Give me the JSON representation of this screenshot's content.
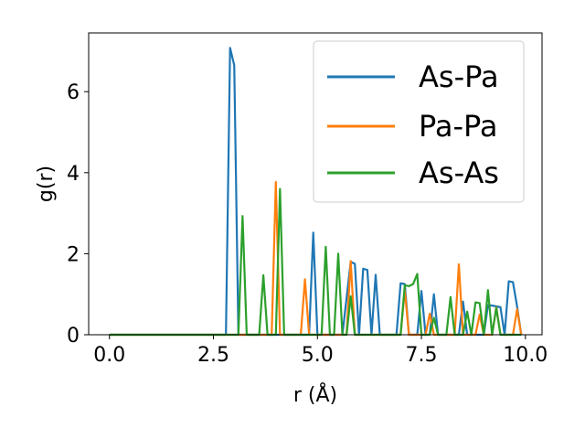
{
  "chart_data": {
    "type": "line",
    "title": "",
    "xlabel": "r (Å)",
    "ylabel": "g(r)",
    "xlim": [
      -0.5,
      10.4
    ],
    "ylim": [
      0,
      7.45
    ],
    "xticks": [
      0.0,
      2.5,
      5.0,
      7.5,
      10.0
    ],
    "xtick_labels": [
      "0.0",
      "2.5",
      "5.0",
      "7.5",
      "10.0"
    ],
    "yticks": [
      0,
      2,
      4,
      6
    ],
    "ytick_labels": [
      "0",
      "2",
      "4",
      "6"
    ],
    "grid": false,
    "legend_position": "top-right",
    "series": [
      {
        "name": "As-Pa",
        "color": "#1f77b4",
        "points": [
          [
            0.0,
            0
          ],
          [
            2.8,
            0
          ],
          [
            2.9,
            7.08
          ],
          [
            3.0,
            6.65
          ],
          [
            3.1,
            0
          ],
          [
            4.8,
            0
          ],
          [
            4.9,
            2.52
          ],
          [
            5.0,
            0
          ],
          [
            5.6,
            0
          ],
          [
            5.8,
            1.8
          ],
          [
            5.9,
            1.75
          ],
          [
            6.0,
            0
          ],
          [
            6.1,
            1.63
          ],
          [
            6.2,
            1.6
          ],
          [
            6.3,
            0
          ],
          [
            6.4,
            1.48
          ],
          [
            6.5,
            0
          ],
          [
            6.9,
            0
          ],
          [
            7.0,
            1.27
          ],
          [
            7.1,
            1.25
          ],
          [
            7.2,
            0
          ],
          [
            7.4,
            0
          ],
          [
            7.5,
            1.08
          ],
          [
            7.6,
            0
          ],
          [
            7.7,
            0
          ],
          [
            7.8,
            1.0
          ],
          [
            7.9,
            0
          ],
          [
            8.4,
            0
          ],
          [
            8.5,
            0.82
          ],
          [
            8.6,
            0
          ],
          [
            9.0,
            0
          ],
          [
            9.1,
            0.73
          ],
          [
            9.2,
            0.72
          ],
          [
            9.3,
            0.7
          ],
          [
            9.4,
            0.68
          ],
          [
            9.5,
            0
          ],
          [
            9.6,
            1.32
          ],
          [
            9.7,
            1.3
          ],
          [
            9.8,
            0.7
          ],
          [
            9.9,
            0
          ]
        ]
      },
      {
        "name": "Pa-Pa",
        "color": "#ff7f0e",
        "points": [
          [
            0.0,
            0
          ],
          [
            3.9,
            0
          ],
          [
            4.0,
            3.77
          ],
          [
            4.1,
            0
          ],
          [
            4.6,
            0
          ],
          [
            4.7,
            1.37
          ],
          [
            4.8,
            0
          ],
          [
            5.7,
            0
          ],
          [
            5.8,
            1.82
          ],
          [
            5.9,
            0
          ],
          [
            7.0,
            0
          ],
          [
            7.1,
            1.1
          ],
          [
            7.2,
            0
          ],
          [
            7.6,
            0
          ],
          [
            7.7,
            0.52
          ],
          [
            7.8,
            0
          ],
          [
            8.3,
            0
          ],
          [
            8.4,
            1.74
          ],
          [
            8.5,
            0
          ],
          [
            8.8,
            0
          ],
          [
            8.9,
            0.5
          ],
          [
            9.0,
            0
          ],
          [
            9.2,
            0
          ],
          [
            9.3,
            0.68
          ],
          [
            9.4,
            0
          ],
          [
            9.7,
            0
          ],
          [
            9.8,
            0.63
          ],
          [
            9.9,
            0
          ]
        ]
      },
      {
        "name": "As-As",
        "color": "#2ca02c",
        "points": [
          [
            0.0,
            0
          ],
          [
            3.1,
            0
          ],
          [
            3.2,
            2.93
          ],
          [
            3.3,
            0
          ],
          [
            3.6,
            0
          ],
          [
            3.7,
            1.47
          ],
          [
            3.8,
            0
          ],
          [
            4.0,
            0
          ],
          [
            4.1,
            3.6
          ],
          [
            4.2,
            0
          ],
          [
            5.1,
            0
          ],
          [
            5.2,
            2.17
          ],
          [
            5.3,
            0
          ],
          [
            5.4,
            0
          ],
          [
            5.5,
            2.0
          ],
          [
            5.6,
            0
          ],
          [
            5.7,
            0
          ],
          [
            5.8,
            0.95
          ],
          [
            5.9,
            0
          ],
          [
            7.0,
            0
          ],
          [
            7.1,
            1.22
          ],
          [
            7.2,
            1.2
          ],
          [
            7.3,
            1.25
          ],
          [
            7.4,
            1.5
          ],
          [
            7.5,
            0
          ],
          [
            7.7,
            0
          ],
          [
            7.8,
            0.42
          ],
          [
            7.9,
            0
          ],
          [
            8.1,
            0
          ],
          [
            8.2,
            0.93
          ],
          [
            8.3,
            0
          ],
          [
            8.5,
            0
          ],
          [
            8.6,
            0.57
          ],
          [
            8.7,
            0
          ],
          [
            8.8,
            0.8
          ],
          [
            8.9,
            0.78
          ],
          [
            9.0,
            0
          ],
          [
            9.1,
            1.1
          ],
          [
            9.2,
            0
          ],
          [
            9.3,
            0.67
          ],
          [
            9.4,
            0
          ],
          [
            9.8,
            0
          ],
          [
            9.9,
            0
          ]
        ]
      }
    ]
  }
}
